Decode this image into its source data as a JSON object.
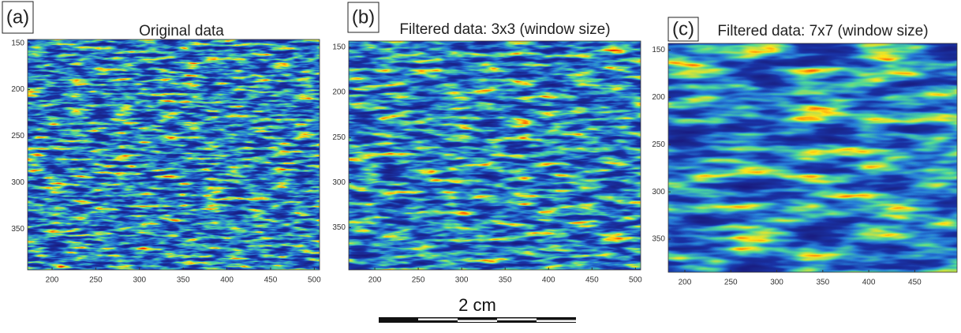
{
  "chart_data": [
    {
      "type": "image",
      "panel_label": "(a)",
      "title": "Original data",
      "xlim": [
        172,
        506
      ],
      "xticks": [
        200,
        250,
        300,
        350,
        400,
        450,
        500
      ],
      "ylim": [
        146,
        394
      ],
      "yticks": [
        150,
        200,
        250,
        300,
        350
      ],
      "y_reversed": true
    },
    {
      "type": "image",
      "panel_label": "(b)",
      "title": "Filtered data: 3x3 (window size)",
      "xlim": [
        170,
        506
      ],
      "xticks": [
        200,
        250,
        300,
        350,
        400,
        450,
        500
      ],
      "ylim": [
        143,
        397
      ],
      "yticks": [
        150,
        200,
        250,
        300,
        350
      ],
      "y_reversed": true
    },
    {
      "type": "image",
      "panel_label": "(c)",
      "title": "Filtered data: 7x7 (window size)",
      "xlim": [
        182,
        496
      ],
      "xticks": [
        200,
        250,
        300,
        350,
        400,
        450
      ],
      "ylim": [
        143,
        385
      ],
      "yticks": [
        150,
        200,
        250,
        300,
        350
      ],
      "y_reversed": true
    }
  ],
  "scale_bar": "2 cm"
}
